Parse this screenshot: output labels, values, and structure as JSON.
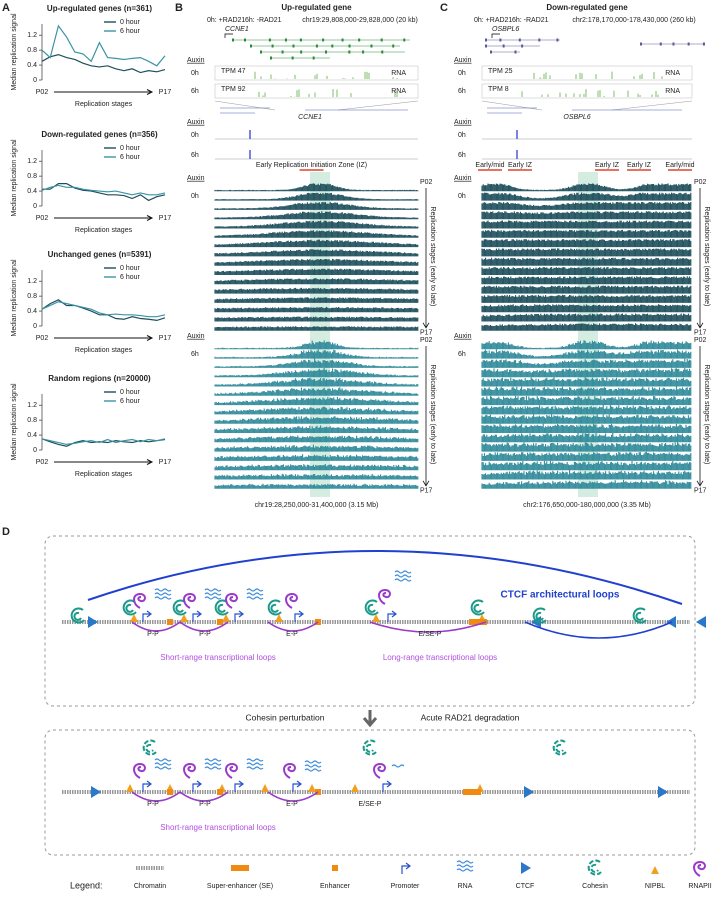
{
  "panel_labels": [
    "A",
    "B",
    "C",
    "D"
  ],
  "chart_data": [
    {
      "type": "line",
      "title": "Up-regulated genes (n=361)",
      "ylabel": "Median replication signal",
      "xlabel": "Replication stages",
      "categories": [
        "P02",
        null,
        null,
        null,
        null,
        null,
        null,
        null,
        null,
        null,
        null,
        null,
        null,
        null,
        null,
        "P17"
      ],
      "series": [
        {
          "name": "0 hour",
          "color": "#1d4e5c",
          "values": [
            0.5,
            0.62,
            0.68,
            0.6,
            0.55,
            0.45,
            0.38,
            0.35,
            0.38,
            0.3,
            0.25,
            0.3,
            0.2,
            0.25,
            0.22,
            0.28
          ]
        },
        {
          "name": "6 hour",
          "color": "#3a94a6",
          "values": [
            0.8,
            0.6,
            1.45,
            1.15,
            0.75,
            0.7,
            0.5,
            1.0,
            0.6,
            0.58,
            0.55,
            0.58,
            0.6,
            0.5,
            0.38,
            0.65
          ]
        }
      ],
      "ylim": [
        0,
        1.5
      ],
      "yticks": [
        0,
        0.4,
        0.8,
        1.2
      ]
    },
    {
      "type": "line",
      "title": "Down-regulated genes (n=356)",
      "ylabel": "Median replication signal",
      "xlabel": "Replication stages",
      "categories": [
        "P02",
        null,
        null,
        null,
        null,
        null,
        null,
        null,
        null,
        null,
        null,
        null,
        null,
        null,
        null,
        "P17"
      ],
      "series": [
        {
          "name": "0 hour",
          "color": "#1d4e5c",
          "values": [
            0.45,
            0.45,
            0.6,
            0.6,
            0.48,
            0.42,
            0.4,
            0.35,
            0.3,
            0.3,
            0.28,
            0.2,
            0.3,
            0.15,
            0.25,
            0.3
          ]
        },
        {
          "name": "6 hour",
          "color": "#3a94a6",
          "values": [
            0.42,
            0.5,
            0.55,
            0.5,
            0.5,
            0.45,
            0.42,
            0.4,
            0.38,
            0.4,
            0.35,
            0.3,
            0.35,
            0.3,
            0.3,
            0.35
          ]
        }
      ],
      "ylim": [
        0,
        1.5
      ],
      "yticks": [
        0,
        0.4,
        0.8,
        1.2
      ]
    },
    {
      "type": "line",
      "title": "Unchanged genes (n=5391)",
      "ylabel": "Median replication signal",
      "xlabel": "Replication stages",
      "categories": [
        "P02",
        null,
        null,
        null,
        null,
        null,
        null,
        null,
        null,
        null,
        null,
        null,
        null,
        null,
        null,
        "P17"
      ],
      "series": [
        {
          "name": "0 hour",
          "color": "#1d4e5c",
          "values": [
            0.45,
            0.6,
            0.7,
            0.55,
            0.55,
            0.48,
            0.4,
            0.3,
            0.3,
            0.2,
            0.18,
            0.25,
            0.2,
            0.18,
            0.15,
            0.22
          ]
        },
        {
          "name": "6 hour",
          "color": "#3a94a6",
          "values": [
            0.45,
            0.55,
            0.65,
            0.6,
            0.55,
            0.5,
            0.45,
            0.35,
            0.3,
            0.32,
            0.3,
            0.3,
            0.28,
            0.25,
            0.25,
            0.3
          ]
        }
      ],
      "ylim": [
        0,
        1.5
      ],
      "yticks": [
        0,
        0.4,
        0.8,
        1.2
      ]
    },
    {
      "type": "line",
      "title": "Random regions (n=20000)",
      "ylabel": "Median replication signal",
      "xlabel": "Replication stages",
      "categories": [
        "P02",
        null,
        null,
        null,
        null,
        null,
        null,
        null,
        null,
        null,
        null,
        null,
        null,
        null,
        null,
        "P17"
      ],
      "series": [
        {
          "name": "0 hour",
          "color": "#1d4e5c",
          "values": [
            0.3,
            0.22,
            0.15,
            0.1,
            0.2,
            0.25,
            0.2,
            0.22,
            0.2,
            0.25,
            0.22,
            0.2,
            0.25,
            0.22,
            0.25,
            0.28
          ]
        },
        {
          "name": "6 hour",
          "color": "#3a94a6",
          "values": [
            0.3,
            0.25,
            0.2,
            0.15,
            0.18,
            0.22,
            0.25,
            0.2,
            0.28,
            0.2,
            0.25,
            0.28,
            0.22,
            0.28,
            0.25,
            0.3
          ]
        }
      ],
      "ylim": [
        0,
        1.5
      ],
      "yticks": [
        0,
        0.4,
        0.8,
        1.2
      ]
    }
  ],
  "browser_b": {
    "title": "Up-regulated gene",
    "conditions": [
      "0h: +RAD21",
      "6h: -RAD21"
    ],
    "region": "chr19:29,808,000-29,828,000 (20 kb)",
    "gene_top": "CCNE1",
    "rna": {
      "auxin": "Auxin",
      "tracks": [
        {
          "sample": "0h",
          "tpm": "TPM 47",
          "assay": "RNA"
        },
        {
          "sample": "6h",
          "tpm": "TPM 92",
          "assay": "RNA"
        }
      ]
    },
    "chip": {
      "auxin": "Auxin",
      "gene": "CCNE1",
      "samples": [
        "0h",
        "6h"
      ]
    },
    "iz_labels": [
      "Early Replication Initiation Zone (IZ)"
    ],
    "repli": [
      {
        "auxin": "Auxin",
        "sample": "0h",
        "start": "P02",
        "end": "P17",
        "arrow": "Replication stages (early to late)"
      },
      {
        "auxin": "Auxin",
        "sample": "6h",
        "start": "P02",
        "end": "P17",
        "arrow": "Replication stages (early to late)"
      }
    ],
    "footer": "chr19:28,250,000-31,400,000 (3.15 Mb)"
  },
  "browser_c": {
    "title": "Down-regulated gene",
    "conditions": [
      "0h: +RAD21",
      "6h: -RAD21"
    ],
    "region": "chr2:178,170,000-178,430,000 (260 kb)",
    "gene_top": "OSBPL6",
    "rna": {
      "auxin": "Auxin",
      "tracks": [
        {
          "sample": "0h",
          "tpm": "TPM 25",
          "assay": "RNA"
        },
        {
          "sample": "6h",
          "tpm": "TPM 8",
          "assay": "RNA"
        }
      ]
    },
    "chip": {
      "auxin": "Auxin",
      "gene": "OSBPL6",
      "samples": [
        "0h",
        "6h"
      ]
    },
    "iz_labels": [
      "Early/mid",
      "Early IZ",
      "Early IZ",
      "Early IZ",
      "Early/mid"
    ],
    "repli": [
      {
        "auxin": "Auxin",
        "sample": "0h",
        "start": "P02",
        "end": "P17",
        "arrow": "Replication stages (early to late)"
      },
      {
        "auxin": "Auxin",
        "sample": "6h",
        "start": "P02",
        "end": "P17",
        "arrow": "Replication stages (early to late)"
      }
    ],
    "footer": "chr2:176,650,000-180,000,000 (3.35 Mb)"
  },
  "diagram": {
    "ctcf_label": "CTCF architectural loops",
    "top_loops": [
      "P-P",
      "P-P",
      "E-P",
      "E/SE-P"
    ],
    "short_label": "Short-range transcriptional loops",
    "long_label": "Long-range transcriptional loops",
    "perturb_left": "Cohesin perturbation",
    "perturb_right": "Acute RAD21 degradation",
    "bottom_loops": [
      "P-P",
      "P-P",
      "E-P",
      "E/SE-P"
    ],
    "bottom_short": "Short-range transcriptional loops"
  },
  "legend": {
    "title": "Legend:",
    "items": [
      "Chromatin",
      "Super-enhancer (SE)",
      "Enhancer",
      "Promoter",
      "RNA",
      "CTCF",
      "Cohesin",
      "NIPBL",
      "RNAPII"
    ]
  }
}
